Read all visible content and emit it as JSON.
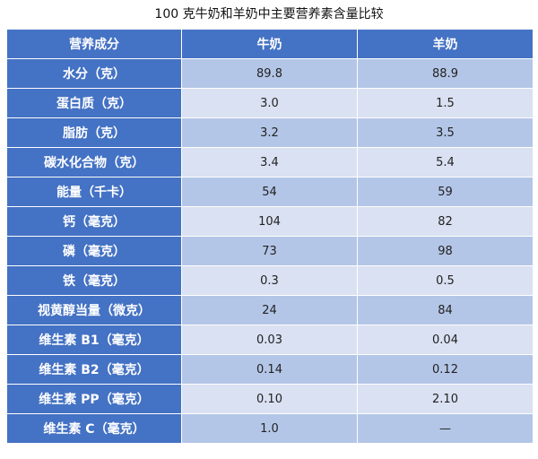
{
  "title": "100 克牛奶和羊奶中主要营养素含量比较",
  "colors": {
    "header": "#4472C4",
    "row_dark": "#B4C6E7",
    "row_light": "#D9E1F2"
  },
  "table": {
    "headers": [
      "营养成分",
      "牛奶",
      "羊奶"
    ],
    "rows": [
      [
        "水分（克）",
        "89.8",
        "88.9"
      ],
      [
        "蛋白质（克）",
        "3.0",
        "1.5"
      ],
      [
        "脂肪（克）",
        "3.2",
        "3.5"
      ],
      [
        "碳水化合物（克）",
        "3.4",
        "5.4"
      ],
      [
        "能量（千卡）",
        "54",
        "59"
      ],
      [
        "钙（毫克）",
        "104",
        "82"
      ],
      [
        "磷（毫克）",
        "73",
        "98"
      ],
      [
        "铁（毫克）",
        "0.3",
        "0.5"
      ],
      [
        "视黄醇当量（微克）",
        "24",
        "84"
      ],
      [
        "维生素 B1（毫克）",
        "0.03",
        "0.04"
      ],
      [
        "维生素 B2（毫克）",
        "0.14",
        "0.12"
      ],
      [
        "维生素 PP（毫克）",
        "0.10",
        "2.10"
      ],
      [
        "维生素 C（毫克）",
        "1.0",
        "—"
      ]
    ]
  }
}
